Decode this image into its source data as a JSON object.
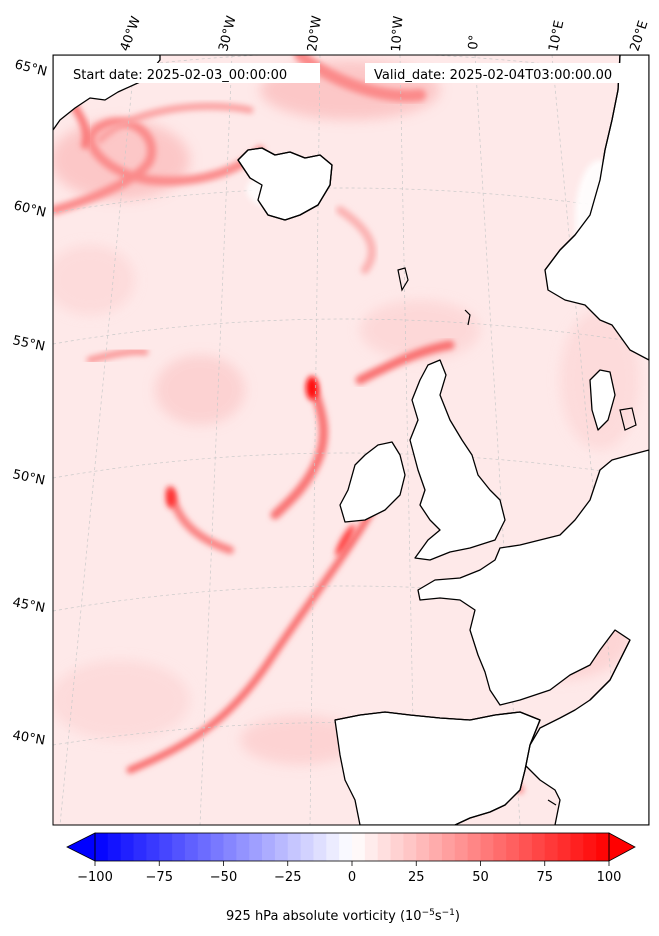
{
  "header": {
    "start_date": "Start date: 2025-02-03_00:00:00",
    "valid_date": "Valid_date: 2025-02-04T03:00:00.00"
  },
  "map": {
    "lon_labels": [
      "40°W",
      "30°W",
      "20°W",
      "10°W",
      "0°",
      "10°E",
      "20°E"
    ],
    "lat_labels": [
      "65°N",
      "60°N",
      "55°N",
      "50°N",
      "45°N",
      "40°N"
    ],
    "background_color": "#fee9e9",
    "coastline_color": "#000000",
    "land_color": "#ffffff"
  },
  "colorbar": {
    "ticks": [
      "−100",
      "−75",
      "−50",
      "−25",
      "0",
      "25",
      "50",
      "75",
      "100"
    ],
    "label": "925 hPa absolute vorticity (10",
    "label_exp1": "−5",
    "label_mid": "s",
    "label_exp2": "−1",
    "label_close": ")",
    "min_color": "#0000ff",
    "mid_color": "#ffffff",
    "max_color": "#ff0000"
  }
}
